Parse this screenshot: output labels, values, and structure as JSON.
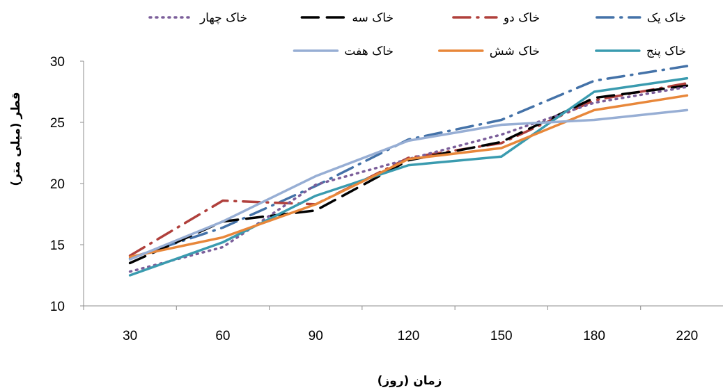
{
  "chart_data": {
    "type": "line",
    "xlabel": "زمان (روز)",
    "ylabel": "قطر (میلی متر)",
    "categories": [
      "30",
      "60",
      "90",
      "120",
      "150",
      "180",
      "220"
    ],
    "ylim": [
      10,
      30
    ],
    "yticks": [
      10,
      15,
      20,
      25,
      30
    ],
    "grid": false,
    "legend_position": "top",
    "series": [
      {
        "name": "خاک یک",
        "color": "#4472A8",
        "style": "dash-dot",
        "values": [
          13.9,
          16.4,
          19.8,
          23.6,
          25.2,
          28.4,
          29.6
        ]
      },
      {
        "name": "خاک دو",
        "color": "#B0403C",
        "style": "dash-dot",
        "values": [
          14.1,
          18.6,
          18.3,
          22.1,
          23.3,
          26.8,
          28.2
        ]
      },
      {
        "name": "خاک سه",
        "color": "#000000",
        "style": "dash",
        "values": [
          13.5,
          16.9,
          17.8,
          21.9,
          23.4,
          27.0,
          28.0
        ]
      },
      {
        "name": "خاک چهار",
        "color": "#7B5E9A",
        "style": "dot",
        "values": [
          12.8,
          14.8,
          19.9,
          22.0,
          24.0,
          26.6,
          27.9
        ]
      },
      {
        "name": "خاک پنج",
        "color": "#3A9BAF",
        "style": "solid",
        "values": [
          12.5,
          15.2,
          19.0,
          21.5,
          22.2,
          27.5,
          28.6
        ]
      },
      {
        "name": "خاک شش",
        "color": "#E8873A",
        "style": "solid",
        "values": [
          14.0,
          15.6,
          18.3,
          22.0,
          22.9,
          26.0,
          27.2
        ]
      },
      {
        "name": "خاک هفت",
        "color": "#97AED4",
        "style": "solid",
        "values": [
          13.8,
          16.9,
          20.6,
          23.5,
          24.8,
          25.2,
          26.0
        ]
      }
    ]
  }
}
